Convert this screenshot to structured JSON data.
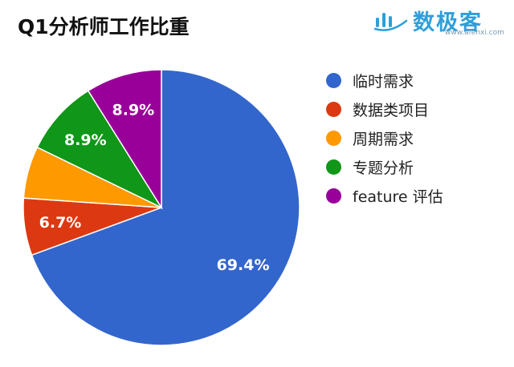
{
  "chart_data": {
    "type": "pie",
    "title": "Q1分析师工作比重",
    "categories": [
      "临时需求",
      "数据类项目",
      "周期需求",
      "专题分析",
      "feature 评估"
    ],
    "values": [
      69.4,
      6.7,
      6.1,
      8.9,
      8.9
    ],
    "data_labels": [
      "69.4%",
      "6.7%",
      "",
      "8.9%",
      "8.9%"
    ],
    "colors": [
      "#3366cc",
      "#dc3912",
      "#ff9900",
      "#109618",
      "#990099"
    ],
    "start_angle_deg": 0,
    "direction": "clockwise",
    "legend_position": "right"
  },
  "logo": {
    "text": "数极客",
    "url": "www.afenxi.com",
    "icon": "chart-bars-logo-icon",
    "color": "#2e9fd9"
  }
}
